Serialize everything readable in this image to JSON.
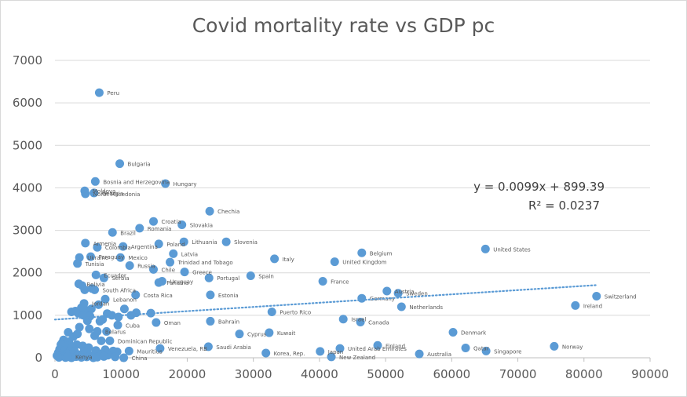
{
  "chart_data": {
    "type": "scatter",
    "title": "Covid mortality rate vs GDP pc",
    "xlabel": "",
    "ylabel": "",
    "xlim": [
      0,
      90000
    ],
    "ylim": [
      0,
      7000
    ],
    "x_ticks": [
      "0",
      "10000",
      "20000",
      "30000",
      "40000",
      "50000",
      "60000",
      "70000",
      "80000",
      "90000"
    ],
    "y_ticks": [
      "0",
      "1000",
      "2000",
      "3000",
      "4000",
      "5000",
      "6000",
      "7000"
    ],
    "grid": "horizontal",
    "trendline": {
      "type": "linear",
      "slope": 0.0099,
      "intercept": 899.39,
      "equation_label": "y = 0.0099x + 899.39",
      "r2_label": "R² = 0.0237"
    },
    "labeled_points": [
      {
        "label": "Peru",
        "x": 6700,
        "y": 6240
      },
      {
        "label": "Bulgaria",
        "x": 9800,
        "y": 4570
      },
      {
        "label": "Bosnia and Herzegovina",
        "x": 6100,
        "y": 4150
      },
      {
        "label": "Hungary",
        "x": 16700,
        "y": 4100
      },
      {
        "label": "Moldova",
        "x": 4500,
        "y": 3930
      },
      {
        "label": "North Macedonia",
        "x": 4600,
        "y": 3860
      },
      {
        "label": "Georgia",
        "x": 5900,
        "y": 3880
      },
      {
        "label": "Chechia",
        "x": 23400,
        "y": 3450
      },
      {
        "label": "Croatia",
        "x": 14900,
        "y": 3210
      },
      {
        "label": "Slovakia",
        "x": 19200,
        "y": 3130
      },
      {
        "label": "Romania",
        "x": 12800,
        "y": 3050
      },
      {
        "label": "Brazil",
        "x": 8700,
        "y": 2950
      },
      {
        "label": "Lithuania",
        "x": 19500,
        "y": 2730
      },
      {
        "label": "Slovenia",
        "x": 25900,
        "y": 2730
      },
      {
        "label": "Armenia",
        "x": 4600,
        "y": 2700
      },
      {
        "label": "Colombia",
        "x": 6400,
        "y": 2600
      },
      {
        "label": "Argentina",
        "x": 10300,
        "y": 2620
      },
      {
        "label": "Poland",
        "x": 15700,
        "y": 2680
      },
      {
        "label": "Latvia",
        "x": 17900,
        "y": 2450
      },
      {
        "label": "Paraguay",
        "x": 5400,
        "y": 2380
      },
      {
        "label": "Ukraine",
        "x": 3700,
        "y": 2360
      },
      {
        "label": "Mexico",
        "x": 9900,
        "y": 2360
      },
      {
        "label": "Italy",
        "x": 33200,
        "y": 2330
      },
      {
        "label": "Trinidad and Tobago",
        "x": 17400,
        "y": 2250
      },
      {
        "label": "Tunisia",
        "x": 3400,
        "y": 2220
      },
      {
        "label": "Russia",
        "x": 11300,
        "y": 2170
      },
      {
        "label": "United Kingdom",
        "x": 42300,
        "y": 2260
      },
      {
        "label": "Belgium",
        "x": 46400,
        "y": 2470
      },
      {
        "label": "United States",
        "x": 65100,
        "y": 2560
      },
      {
        "label": "Chile",
        "x": 14900,
        "y": 2080
      },
      {
        "label": "Greece",
        "x": 19600,
        "y": 2020
      },
      {
        "label": "Ecuador",
        "x": 6200,
        "y": 1950
      },
      {
        "label": "Serbia",
        "x": 7400,
        "y": 1880
      },
      {
        "label": "Portugal",
        "x": 23300,
        "y": 1880
      },
      {
        "label": "Spain",
        "x": 29600,
        "y": 1930
      },
      {
        "label": "Uruguay",
        "x": 16200,
        "y": 1800
      },
      {
        "label": "Panama",
        "x": 15700,
        "y": 1770
      },
      {
        "label": "France",
        "x": 40500,
        "y": 1800
      },
      {
        "label": "Bolivia",
        "x": 3600,
        "y": 1740
      },
      {
        "label": "South Africa",
        "x": 6000,
        "y": 1600
      },
      {
        "label": "Costa Rica",
        "x": 12200,
        "y": 1480
      },
      {
        "label": "Estonia",
        "x": 23500,
        "y": 1480
      },
      {
        "label": "Austria",
        "x": 50200,
        "y": 1570
      },
      {
        "label": "Sweden",
        "x": 51900,
        "y": 1520
      },
      {
        "label": "Germany",
        "x": 46400,
        "y": 1400
      },
      {
        "label": "Lebanon",
        "x": 7600,
        "y": 1380
      },
      {
        "label": "Jordan",
        "x": 4400,
        "y": 1280
      },
      {
        "label": "Netherlands",
        "x": 52400,
        "y": 1200
      },
      {
        "label": "Switzerland",
        "x": 81900,
        "y": 1450
      },
      {
        "label": "Ireland",
        "x": 78700,
        "y": 1230
      },
      {
        "label": "Puerto Rico",
        "x": 32800,
        "y": 1080
      },
      {
        "label": "Oman",
        "x": 15300,
        "y": 830
      },
      {
        "label": "Bahrain",
        "x": 23500,
        "y": 860
      },
      {
        "label": "Israel",
        "x": 43600,
        "y": 910
      },
      {
        "label": "Canada",
        "x": 46200,
        "y": 840
      },
      {
        "label": "Cuba",
        "x": 9500,
        "y": 770
      },
      {
        "label": "Belarus",
        "x": 6400,
        "y": 620
      },
      {
        "label": "Cyprus",
        "x": 27900,
        "y": 560
      },
      {
        "label": "Kuwait",
        "x": 32400,
        "y": 590
      },
      {
        "label": "Denmark",
        "x": 60200,
        "y": 600
      },
      {
        "label": "Dominican Republic",
        "x": 8300,
        "y": 400
      },
      {
        "label": "Venezuela, RB",
        "x": 15900,
        "y": 220
      },
      {
        "label": "Mauritius",
        "x": 11200,
        "y": 160
      },
      {
        "label": "Saudi Arabia",
        "x": 23200,
        "y": 260
      },
      {
        "label": "Finland",
        "x": 48800,
        "y": 290
      },
      {
        "label": "United Arab Emirates",
        "x": 43100,
        "y": 220
      },
      {
        "label": "Qatar",
        "x": 62100,
        "y": 230
      },
      {
        "label": "Norway",
        "x": 75500,
        "y": 270
      },
      {
        "label": "Japan",
        "x": 40100,
        "y": 150
      },
      {
        "label": "Korea, Rep.",
        "x": 31900,
        "y": 110
      },
      {
        "label": "Australia",
        "x": 55100,
        "y": 90
      },
      {
        "label": "Singapore",
        "x": 65200,
        "y": 160
      },
      {
        "label": "New Zealand",
        "x": 41800,
        "y": 20
      },
      {
        "label": "China",
        "x": 10400,
        "y": 0
      },
      {
        "label": "Kenya",
        "x": 1900,
        "y": 30
      }
    ],
    "unlabeled_points": [
      {
        "x": 2500,
        "y": 1080
      },
      {
        "x": 3500,
        "y": 1050
      },
      {
        "x": 4000,
        "y": 1180
      },
      {
        "x": 4700,
        "y": 1120
      },
      {
        "x": 5500,
        "y": 1150
      },
      {
        "x": 4300,
        "y": 1000
      },
      {
        "x": 5300,
        "y": 980
      },
      {
        "x": 4900,
        "y": 870
      },
      {
        "x": 6800,
        "y": 860
      },
      {
        "x": 7900,
        "y": 1040
      },
      {
        "x": 8600,
        "y": 1000
      },
      {
        "x": 3100,
        "y": 1100
      },
      {
        "x": 4500,
        "y": 1600
      },
      {
        "x": 5600,
        "y": 1630
      },
      {
        "x": 4100,
        "y": 1700
      },
      {
        "x": 12300,
        "y": 1060
      },
      {
        "x": 14500,
        "y": 1050
      },
      {
        "x": 11500,
        "y": 1000
      },
      {
        "x": 9600,
        "y": 960
      },
      {
        "x": 7200,
        "y": 900
      },
      {
        "x": 3700,
        "y": 720
      },
      {
        "x": 5200,
        "y": 680
      },
      {
        "x": 2800,
        "y": 500
      },
      {
        "x": 6000,
        "y": 520
      },
      {
        "x": 1300,
        "y": 420
      },
      {
        "x": 1100,
        "y": 350
      },
      {
        "x": 2100,
        "y": 380
      },
      {
        "x": 900,
        "y": 310
      },
      {
        "x": 1800,
        "y": 280
      },
      {
        "x": 2600,
        "y": 250
      },
      {
        "x": 3300,
        "y": 310
      },
      {
        "x": 4200,
        "y": 280
      },
      {
        "x": 5100,
        "y": 240
      },
      {
        "x": 700,
        "y": 200
      },
      {
        "x": 1500,
        "y": 180
      },
      {
        "x": 2300,
        "y": 160
      },
      {
        "x": 3000,
        "y": 140
      },
      {
        "x": 4400,
        "y": 150
      },
      {
        "x": 6200,
        "y": 170
      },
      {
        "x": 7600,
        "y": 190
      },
      {
        "x": 8800,
        "y": 160
      },
      {
        "x": 9400,
        "y": 140
      },
      {
        "x": 500,
        "y": 120
      },
      {
        "x": 1200,
        "y": 100
      },
      {
        "x": 1900,
        "y": 90
      },
      {
        "x": 2700,
        "y": 80
      },
      {
        "x": 3600,
        "y": 70
      },
      {
        "x": 5300,
        "y": 60
      },
      {
        "x": 6900,
        "y": 90
      },
      {
        "x": 8000,
        "y": 60
      },
      {
        "x": 300,
        "y": 50
      },
      {
        "x": 800,
        "y": 40
      },
      {
        "x": 1400,
        "y": 30
      },
      {
        "x": 2200,
        "y": 20
      },
      {
        "x": 3200,
        "y": 25
      },
      {
        "x": 4800,
        "y": 20
      },
      {
        "x": 6400,
        "y": 15
      },
      {
        "x": 7400,
        "y": 30
      },
      {
        "x": 600,
        "y": 10
      },
      {
        "x": 1600,
        "y": 5
      },
      {
        "x": 2500,
        "y": 0
      },
      {
        "x": 4000,
        "y": 10
      },
      {
        "x": 5800,
        "y": 0
      },
      {
        "x": 9100,
        "y": 20
      },
      {
        "x": 7000,
        "y": 400
      },
      {
        "x": 7800,
        "y": 620
      },
      {
        "x": 3400,
        "y": 560
      },
      {
        "x": 2000,
        "y": 600
      },
      {
        "x": 6600,
        "y": 1250
      },
      {
        "x": 10500,
        "y": 1150
      }
    ]
  }
}
